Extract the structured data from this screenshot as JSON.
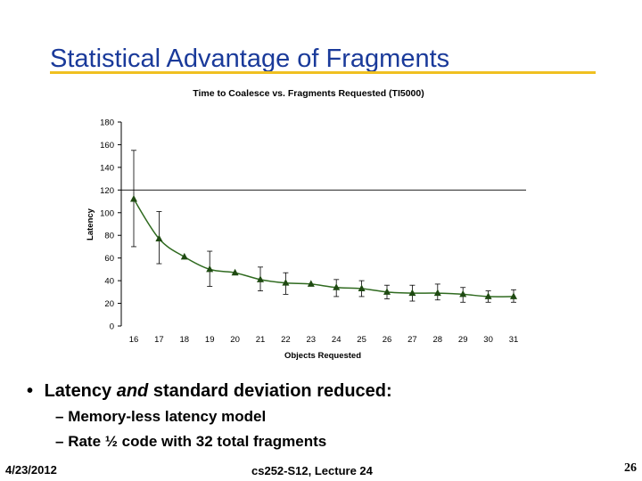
{
  "slide": {
    "title": "Statistical Advantage of Fragments",
    "bullet": {
      "prefix": "Latency ",
      "emphasis": "and",
      "suffix": " standard deviation reduced:"
    },
    "sub_items": [
      "Memory-less latency model",
      "Rate ½ code with 32 total fragments"
    ],
    "footer": {
      "date": "4/23/2012",
      "course": "cs252-S12, Lecture 24",
      "page": "26"
    }
  },
  "chart_data": {
    "type": "line",
    "title": "Time to Coalesce vs. Fragments Requested (TI5000)",
    "xlabel": "Objects Requested",
    "ylabel": "Latency",
    "ylim": [
      0,
      180
    ],
    "yticks": [
      0,
      20,
      40,
      60,
      80,
      100,
      120,
      140,
      160,
      180
    ],
    "categories": [
      "16",
      "17",
      "18",
      "19",
      "20",
      "21",
      "22",
      "23",
      "24",
      "25",
      "26",
      "27",
      "28",
      "29",
      "30",
      "31"
    ],
    "reference_line": 120,
    "series": [
      {
        "values": [
          112,
          77,
          61,
          50,
          47,
          41,
          38,
          37,
          34,
          33,
          30,
          29,
          29,
          28,
          26,
          26
        ],
        "error_low": [
          70,
          55,
          null,
          35,
          null,
          31,
          28,
          null,
          26,
          26,
          24,
          22,
          23,
          21,
          21,
          21
        ],
        "error_high": [
          155,
          101,
          null,
          66,
          null,
          52,
          47,
          null,
          41,
          40,
          36,
          36,
          37,
          34,
          31,
          32
        ],
        "color": "#2f6a1f"
      }
    ]
  }
}
